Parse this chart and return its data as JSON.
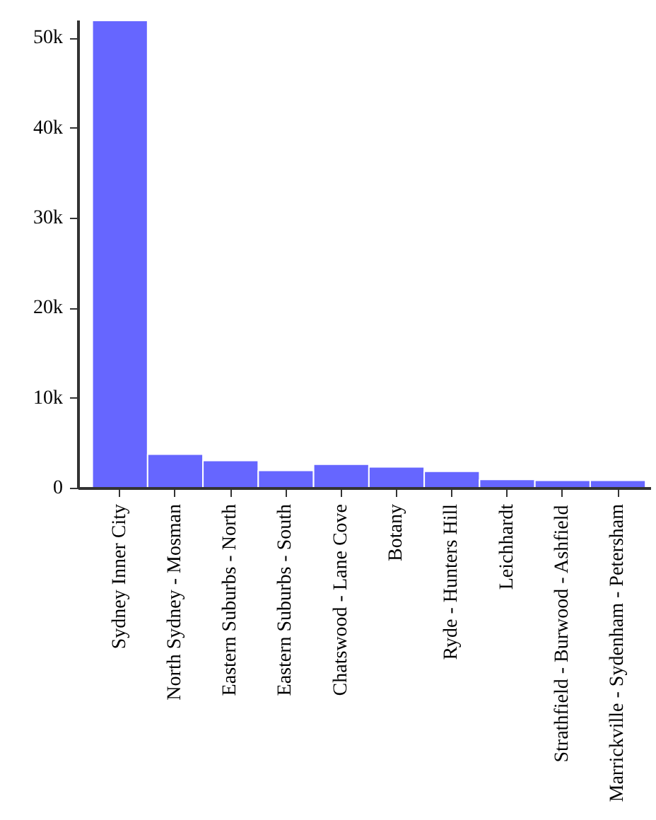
{
  "chart_data": {
    "type": "bar",
    "categories": [
      "Sydney Inner City",
      "North Sydney - Mosman",
      "Eastern Suburbs - North",
      "Eastern Suburbs - South",
      "Chatswood - Lane Cove",
      "Botany",
      "Ryde - Hunters Hill",
      "Leichhardt",
      "Strathfield - Burwood - Ashfield",
      "Marrickville - Sydenham - Petersham"
    ],
    "values": [
      52000,
      3800,
      3100,
      2000,
      2700,
      2400,
      1900,
      1000,
      900,
      900
    ],
    "color": "#6666ff",
    "ylim": [
      0,
      52000
    ],
    "yticks": [
      0,
      {
        "value": 10000,
        "label": "10k"
      },
      {
        "value": 20000,
        "label": "20k"
      },
      {
        "value": 30000,
        "label": "30k"
      },
      {
        "value": 40000,
        "label": "40k"
      },
      {
        "value": 50000,
        "label": "50k"
      }
    ],
    "grid": false
  }
}
